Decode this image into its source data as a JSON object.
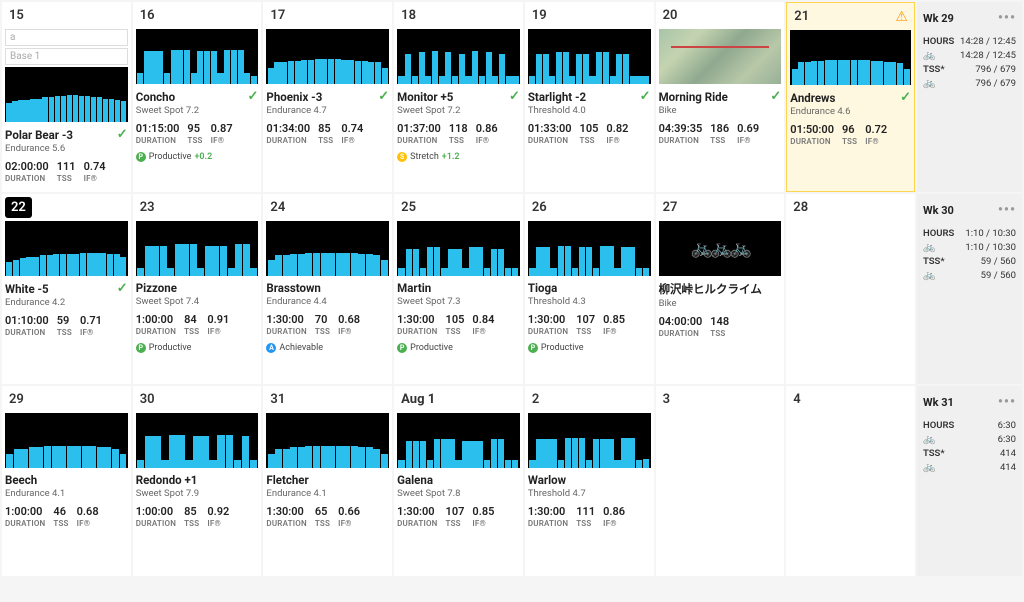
{
  "colors": {
    "bar": "#2bbfed",
    "bg_black": "#000000",
    "highlight_bg": "#fff8e1",
    "highlight_border": "#ffd54f",
    "check": "#4caf50",
    "badge_green": "#4caf50",
    "badge_blue": "#2196f3",
    "badge_orange": "#ffc107"
  },
  "labels": {
    "duration": "DURATION",
    "tss": "TSS",
    "if": "IF®",
    "hours": "HOURS",
    "tss_star": "TSS*"
  },
  "inputs": {
    "placeholder": "a",
    "base": "Base 1"
  },
  "weeks": [
    {
      "label": "Wk 29",
      "hours": "14:28 / 12:45",
      "bike_hours": "14:28 / 12:45",
      "tss": "796 / 679",
      "bike_tss": "796 / 679"
    },
    {
      "label": "Wk 30",
      "hours": "1:10 / 10:30",
      "bike_hours": "1:10 / 10:30",
      "tss": "59 / 560",
      "bike_tss": "59 / 560"
    },
    {
      "label": "Wk 31",
      "hours": "6:30",
      "bike_hours": "6:30",
      "tss": "414",
      "bike_tss": "414"
    }
  ],
  "days": [
    {
      "num": "15",
      "inputs": true,
      "workout": {
        "name": "Polar Bear -3",
        "sub": "Endurance 5.6",
        "duration": "02:00:00",
        "tss": "111",
        "if": "0.74",
        "check": true,
        "bars": [
          35,
          38,
          40,
          40,
          42,
          42,
          45,
          45,
          48,
          48,
          50,
          50,
          48,
          48,
          45,
          45,
          42,
          42,
          40,
          38
        ]
      }
    },
    {
      "num": "16",
      "workout": {
        "name": "Concho",
        "sub": "Sweet Spot 7.2",
        "duration": "01:15:00",
        "tss": "95",
        "if": "0.87",
        "check": true,
        "bars": [
          20,
          60,
          60,
          60,
          20,
          62,
          62,
          62,
          20,
          60,
          60,
          60,
          20,
          62,
          62,
          62,
          20,
          15
        ],
        "badge": {
          "type": "green",
          "text": "Productive",
          "delta": "+0.2"
        }
      }
    },
    {
      "num": "17",
      "workout": {
        "name": "Phoenix -3",
        "sub": "Endurance 4.7",
        "duration": "01:34:00",
        "tss": "85",
        "if": "0.74",
        "check": true,
        "bars": [
          30,
          40,
          40,
          42,
          42,
          44,
          44,
          45,
          45,
          45,
          45,
          44,
          44,
          42,
          42,
          40,
          40,
          30
        ]
      }
    },
    {
      "num": "18",
      "workout": {
        "name": "Monitor +5",
        "sub": "Sweet Spot 7.2",
        "duration": "01:37:00",
        "tss": "118",
        "if": "0.86",
        "check": true,
        "bars": [
          15,
          55,
          15,
          58,
          15,
          60,
          15,
          58,
          15,
          55,
          15,
          60,
          15,
          58,
          15,
          55,
          15,
          15
        ],
        "badge": {
          "type": "orange",
          "text": "Stretch",
          "delta": "+1.2"
        }
      }
    },
    {
      "num": "19",
      "workout": {
        "name": "Starlight -2",
        "sub": "Threshold 4.0",
        "duration": "01:33:00",
        "tss": "105",
        "if": "0.82",
        "check": true,
        "bars": [
          15,
          55,
          55,
          15,
          58,
          58,
          15,
          55,
          55,
          15,
          58,
          58,
          15,
          55,
          55,
          15,
          15,
          15
        ]
      }
    },
    {
      "num": "20",
      "workout": {
        "name": "Morning Ride",
        "sub": "Bike",
        "duration": "04:39:35",
        "tss": "186",
        "if": "0.69",
        "check": true,
        "map": true
      }
    },
    {
      "num": "21",
      "highlight": true,
      "warning": true,
      "workout": {
        "name": "Andrews",
        "sub": "Endurance 4.6",
        "duration": "01:50:00",
        "tss": "96",
        "if": "0.72",
        "check": true,
        "bars": [
          30,
          42,
          42,
          44,
          44,
          45,
          45,
          45,
          45,
          45,
          45,
          45,
          44,
          44,
          42,
          42,
          40,
          30
        ]
      }
    },
    {
      "num": "22",
      "today": true,
      "workout": {
        "name": "White -5",
        "sub": "Endurance 4.2",
        "duration": "01:10:00",
        "tss": "59",
        "if": "0.71",
        "check": true,
        "bars": [
          25,
          30,
          32,
          35,
          35,
          38,
          38,
          40,
          40,
          40,
          40,
          42,
          42,
          42,
          42,
          40,
          40,
          35
        ]
      }
    },
    {
      "num": "23",
      "workout": {
        "name": "Pizzone",
        "sub": "Sweet Spot 7.4",
        "duration": "1:00:00",
        "tss": "84",
        "if": "0.91",
        "bars": [
          15,
          55,
          55,
          55,
          15,
          58,
          58,
          58,
          15,
          55,
          55,
          55,
          15,
          58,
          58,
          15
        ],
        "badge": {
          "type": "green",
          "text": "Productive"
        }
      }
    },
    {
      "num": "24",
      "workout": {
        "name": "Brasstown",
        "sub": "Endurance 4.4",
        "duration": "1:30:00",
        "tss": "70",
        "if": "0.68",
        "bars": [
          30,
          38,
          38,
          40,
          40,
          42,
          42,
          42,
          42,
          42,
          42,
          42,
          40,
          40,
          38,
          30
        ],
        "badge": {
          "type": "blue",
          "text": "Achievable"
        }
      }
    },
    {
      "num": "25",
      "workout": {
        "name": "Martin",
        "sub": "Sweet Spot 7.3",
        "duration": "1:30:00",
        "tss": "105",
        "if": "0.84",
        "bars": [
          15,
          50,
          50,
          15,
          52,
          52,
          15,
          50,
          50,
          15,
          52,
          52,
          15,
          50,
          50,
          15,
          15
        ],
        "badge": {
          "type": "green",
          "text": "Productive"
        }
      }
    },
    {
      "num": "26",
      "workout": {
        "name": "Tioga",
        "sub": "Threshold 4.3",
        "duration": "1:30:00",
        "tss": "107",
        "if": "0.85",
        "bars": [
          15,
          52,
          52,
          15,
          55,
          55,
          15,
          52,
          52,
          15,
          55,
          55,
          15,
          52,
          52,
          15,
          15
        ],
        "badge": {
          "type": "green",
          "text": "Productive"
        }
      }
    },
    {
      "num": "27",
      "workout": {
        "name": "柳沢峠ヒルクライム",
        "sub": "Bike",
        "duration": "04:00:00",
        "tss": "148",
        "black_icon": true
      }
    },
    {
      "num": "28",
      "empty": true
    },
    {
      "num": "29",
      "workout": {
        "name": "Beech",
        "sub": "Endurance 4.1",
        "duration": "1:00:00",
        "tss": "46",
        "if": "0.68",
        "bars": [
          25,
          35,
          35,
          38,
          38,
          40,
          40,
          40,
          40,
          40,
          40,
          40,
          38,
          38,
          35,
          25
        ]
      }
    },
    {
      "num": "30",
      "workout": {
        "name": "Redondo +1",
        "sub": "Sweet Spot 7.9",
        "duration": "1:00:00",
        "tss": "85",
        "if": "0.92",
        "bars": [
          15,
          58,
          58,
          15,
          60,
          60,
          15,
          58,
          58,
          15,
          60,
          60,
          15,
          58,
          15
        ]
      }
    },
    {
      "num": "31",
      "workout": {
        "name": "Fletcher",
        "sub": "Endurance 4.1",
        "duration": "1:30:00",
        "tss": "65",
        "if": "0.66",
        "bars": [
          25,
          35,
          35,
          38,
          38,
          40,
          40,
          40,
          40,
          40,
          40,
          40,
          38,
          38,
          35,
          25
        ]
      }
    },
    {
      "num": "Aug 1",
      "month": true,
      "workout": {
        "name": "Galena",
        "sub": "Sweet Spot 7.8",
        "duration": "1:30:00",
        "tss": "107",
        "if": "0.85",
        "bars": [
          15,
          50,
          50,
          50,
          15,
          52,
          52,
          52,
          15,
          50,
          50,
          50,
          15,
          52,
          52,
          15,
          15
        ]
      }
    },
    {
      "num": "2",
      "workout": {
        "name": "Warlow",
        "sub": "Threshold 4.7",
        "duration": "1:30:00",
        "tss": "111",
        "if": "0.86",
        "bars": [
          15,
          52,
          52,
          52,
          15,
          55,
          55,
          55,
          15,
          52,
          52,
          52,
          15,
          55,
          55,
          15,
          17
        ]
      }
    },
    {
      "num": "3",
      "empty": true
    },
    {
      "num": "4",
      "empty": true
    }
  ]
}
